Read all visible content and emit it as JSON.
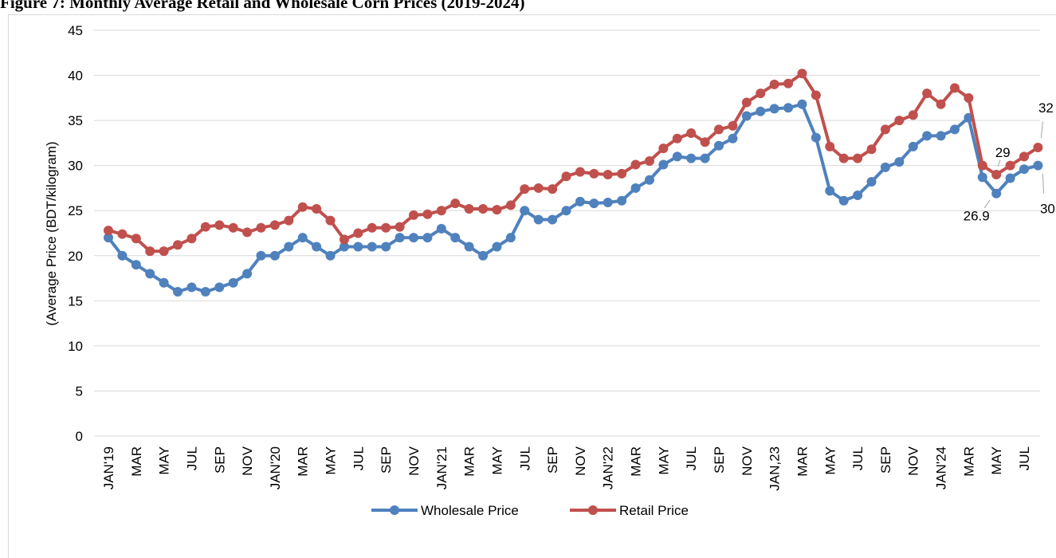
{
  "chart_data": {
    "type": "line",
    "title": "Figure 7: Monthly Average Retail and Wholesale Corn Prices (2019-2024)",
    "y_label": "(Average  Price (BDT/kilogram)",
    "categories": [
      "JAN'19",
      null,
      "MAR",
      null,
      "MAY",
      null,
      "JUL",
      null,
      "SEP",
      null,
      "NOV",
      null,
      "JAN'20",
      null,
      "MAR",
      null,
      "MAY",
      null,
      "JUL",
      null,
      "SEP",
      null,
      "NOV",
      null,
      "JAN'21",
      null,
      "MAR",
      null,
      "MAY",
      null,
      "JUL",
      null,
      "SEP",
      null,
      "NOV",
      null,
      "JAN'22",
      null,
      "MAR",
      null,
      "MAY",
      null,
      "JUL",
      null,
      "SEP",
      null,
      "NOV",
      null,
      "JAN,23",
      null,
      "MAR",
      null,
      "MAY",
      null,
      "JUL",
      null,
      "SEP",
      null,
      "NOV",
      null,
      "JAN'24",
      null,
      "MAR",
      null,
      "MAY",
      null,
      "JUL",
      null
    ],
    "series": [
      {
        "name": "Wholesale Price",
        "color": "#4f81bd",
        "values": [
          22,
          20,
          19,
          18,
          17,
          16,
          16.5,
          16,
          16.5,
          17,
          18,
          20,
          20,
          21,
          22,
          21,
          20,
          21,
          21,
          21,
          21,
          22,
          22,
          22,
          23,
          22,
          21,
          20,
          21,
          22,
          25,
          24,
          24,
          25,
          26,
          25.8,
          25.9,
          26.1,
          27.5,
          28.4,
          30.1,
          31,
          30.8,
          30.8,
          32.2,
          33,
          35.5,
          36,
          36.3,
          36.4,
          36.8,
          33.1,
          27.2,
          26.1,
          26.7,
          28.2,
          29.8,
          30.4,
          32.1,
          33.3,
          33.3,
          34,
          35.3,
          28.7,
          26.9,
          28.6,
          29.6,
          30
        ]
      },
      {
        "name": "Retail Price",
        "color": "#c0504d",
        "values": [
          22.8,
          22.4,
          21.9,
          20.5,
          20.5,
          21.2,
          21.9,
          23.2,
          23.4,
          23.1,
          22.6,
          23.1,
          23.4,
          23.9,
          25.4,
          25.2,
          23.9,
          21.8,
          22.5,
          23.1,
          23.1,
          23.2,
          24.5,
          24.6,
          25,
          25.8,
          25.2,
          25.2,
          25.1,
          25.6,
          27.4,
          27.5,
          27.4,
          28.8,
          29.3,
          29.1,
          29,
          29.1,
          30.1,
          30.5,
          31.9,
          33,
          33.6,
          32.6,
          34,
          34.4,
          37,
          38,
          39,
          39.1,
          40.2,
          37.8,
          32.1,
          30.8,
          30.8,
          31.8,
          34,
          35,
          35.6,
          38,
          36.8,
          38.6,
          37.5,
          30,
          29,
          30,
          31,
          32
        ]
      }
    ],
    "ylim": [
      0,
      45
    ],
    "yticks": [
      0,
      5,
      10,
      15,
      20,
      25,
      30,
      35,
      40,
      45
    ],
    "grid": true,
    "legend": "bottom"
  }
}
